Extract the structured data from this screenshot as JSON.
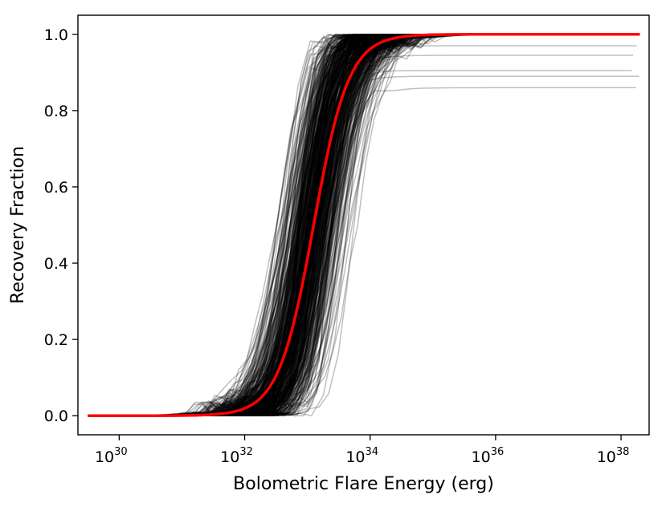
{
  "chart_data": {
    "type": "line",
    "xscale": "log",
    "xlabel": "Bolometric Flare Energy (erg)",
    "ylabel": "Recovery Fraction",
    "xlim": [
      2.2e+29,
      2.8e+38
    ],
    "ylim": [
      -0.05,
      1.05
    ],
    "xticks": [
      {
        "value": 1e+30,
        "base": "10",
        "exp": "30"
      },
      {
        "value": 1e+32,
        "base": "10",
        "exp": "32"
      },
      {
        "value": 1e+34,
        "base": "10",
        "exp": "34"
      },
      {
        "value": 1e+36,
        "base": "10",
        "exp": "36"
      },
      {
        "value": 1e+38,
        "base": "10",
        "exp": "38"
      }
    ],
    "yticks": [
      {
        "value": 0.0,
        "label": "0.0"
      },
      {
        "value": 0.2,
        "label": "0.2"
      },
      {
        "value": 0.4,
        "label": "0.4"
      },
      {
        "value": 0.6,
        "label": "0.6"
      },
      {
        "value": 0.8,
        "label": "0.8"
      },
      {
        "value": 1.0,
        "label": "1.0"
      }
    ],
    "grid": false,
    "legend": "none",
    "ensemble": {
      "color": "#000000",
      "opacity": 0.25,
      "count": 500,
      "log_x_start": 29.5,
      "log_x_end": 38.3,
      "midpoint_log_e_range": [
        32.3,
        34.4
      ],
      "midpoint_log_e_center": 33.1,
      "plateau_values_seen": [
        1.0,
        0.97,
        0.945,
        0.905,
        0.89,
        0.86
      ]
    },
    "series": [
      {
        "style": "sigmoid",
        "color": "#ff0000",
        "log_x_start": 29.5,
        "log_x_end": 38.3,
        "x50_log": 33.1,
        "width_log": 0.28,
        "values_at_log_x": [
          {
            "log_x": 31.5,
            "y": 0.0
          },
          {
            "log_x": 32.0,
            "y": 0.02
          },
          {
            "log_x": 32.5,
            "y": 0.11
          },
          {
            "log_x": 33.0,
            "y": 0.42
          },
          {
            "log_x": 33.5,
            "y": 0.81
          },
          {
            "log_x": 34.0,
            "y": 0.96
          },
          {
            "log_x": 35.0,
            "y": 1.0
          },
          {
            "log_x": 38.3,
            "y": 1.0
          }
        ]
      }
    ]
  }
}
